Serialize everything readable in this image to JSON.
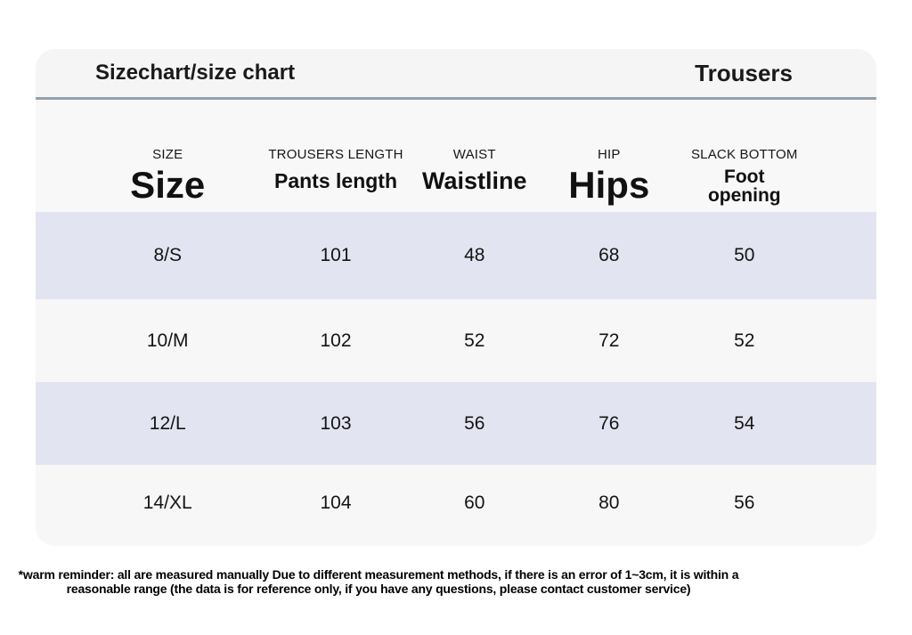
{
  "header": {
    "title": "Sizechart/size chart",
    "category": "Trousers"
  },
  "table": {
    "columns": [
      {
        "sub": "SIZE",
        "main": "Size"
      },
      {
        "sub": "TROUSERS LENGTH",
        "main": "Pants length"
      },
      {
        "sub": "WAIST",
        "main": "Waistline"
      },
      {
        "sub": "HIP",
        "main": "Hips"
      },
      {
        "sub": "SLACK BOTTOM",
        "main": "Foot opening"
      }
    ],
    "rows": [
      {
        "cells": [
          "8/S",
          "101",
          "48",
          "68",
          "50"
        ]
      },
      {
        "cells": [
          "10/M",
          "102",
          "52",
          "72",
          "52"
        ]
      },
      {
        "cells": [
          "12/L",
          "103",
          "56",
          "76",
          "54"
        ]
      },
      {
        "cells": [
          "14/XL",
          "104",
          "60",
          "80",
          "56"
        ]
      }
    ]
  },
  "footer": {
    "note": "*warm reminder: all are measured manually Due to different measurement methods, if there is an error of 1~3cm, it is within a reasonable range (the data is for reference only, if you have any questions, please contact customer service)"
  },
  "colors": {
    "row_highlight": "#e3e4f1",
    "row_plain": "#f7f7f8",
    "card_header_bg": "#f5f5f6",
    "divider": "#91a1ab",
    "text": "#141414",
    "page_bg": "#ffffff"
  },
  "chart_data": {
    "type": "table",
    "title": "Sizechart/size chart",
    "subtitle": "Trousers",
    "columns": [
      "Size",
      "Pants length",
      "Waistline",
      "Hips",
      "Foot opening"
    ],
    "column_alt_labels": [
      "SIZE",
      "TROUSERS LENGTH",
      "WAIST",
      "HIP",
      "SLACK BOTTOM"
    ],
    "rows": [
      [
        "8/S",
        101,
        48,
        68,
        50
      ],
      [
        "10/M",
        102,
        52,
        72,
        52
      ],
      [
        "12/L",
        103,
        56,
        76,
        54
      ],
      [
        "14/XL",
        104,
        60,
        80,
        56
      ]
    ],
    "note": "*warm reminder: all are measured manually Due to different measurement methods, if there is an error of 1~3cm, it is within a reasonable range (the data is for reference only, if you have any questions, please contact customer service)"
  }
}
